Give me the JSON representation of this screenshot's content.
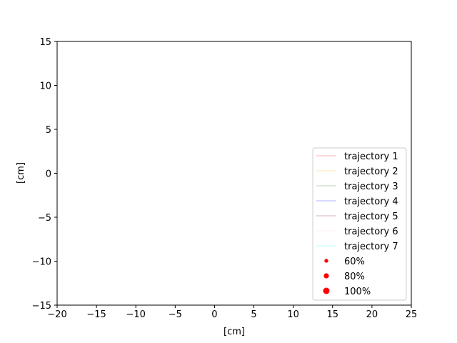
{
  "chart_data": {
    "type": "line",
    "title": "",
    "xlabel": "[cm]",
    "ylabel": "[cm]",
    "xlim": [
      -20,
      25
    ],
    "ylim": [
      -15,
      15
    ],
    "grid": false,
    "legend_position": "lower-right",
    "x_ticks": [
      -20,
      -15,
      -10,
      -5,
      0,
      5,
      10,
      15,
      20,
      25
    ],
    "y_ticks": [
      -15,
      -10,
      -5,
      0,
      5,
      10,
      15
    ],
    "series": [
      {
        "name": "trajectory 1",
        "color": "#ff0000",
        "x": [],
        "y": []
      },
      {
        "name": "trajectory 2",
        "color": "#ffa500",
        "x": [],
        "y": []
      },
      {
        "name": "trajectory 3",
        "color": "#008000",
        "x": [],
        "y": []
      },
      {
        "name": "trajectory 4",
        "color": "#0000ff",
        "x": [],
        "y": []
      },
      {
        "name": "trajectory 5",
        "color": "#800000",
        "x": [],
        "y": []
      },
      {
        "name": "trajectory 6",
        "color": "#ffc0cb",
        "x": [],
        "y": []
      },
      {
        "name": "trajectory 7",
        "color": "#00ffff",
        "x": [],
        "y": []
      }
    ],
    "marker_legend": [
      {
        "label": "60%",
        "color": "#ff0000",
        "size": 0.6
      },
      {
        "label": "80%",
        "color": "#ff0000",
        "size": 0.8
      },
      {
        "label": "100%",
        "color": "#ff0000",
        "size": 1.0
      }
    ]
  }
}
